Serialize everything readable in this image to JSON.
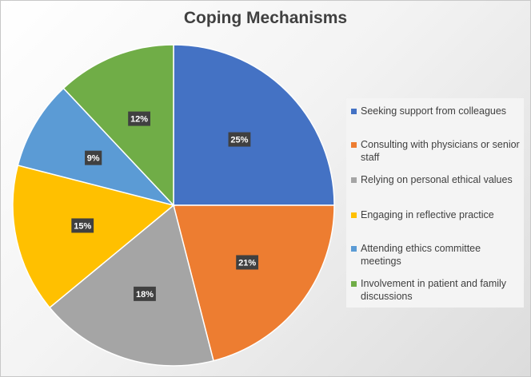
{
  "chart_data": {
    "type": "pie",
    "title": "Coping Mechanisms",
    "categories": [
      "Seeking support from colleagues",
      "Consulting with physicians or senior staff",
      "Relying on personal ethical values",
      "Engaging in reflective practice",
      "Attending ethics committee meetings",
      "Involvement in patient and family discussions"
    ],
    "values": [
      25,
      21,
      18,
      15,
      9,
      12
    ],
    "data_labels": [
      "25%",
      "21%",
      "18%",
      "15%",
      "9%",
      "12%"
    ],
    "colors": [
      "#4472C4",
      "#ED7D31",
      "#A5A5A5",
      "#FFC000",
      "#5B9BD5",
      "#70AD47"
    ],
    "legend_position": "right",
    "start_angle": "top, clockwise"
  }
}
